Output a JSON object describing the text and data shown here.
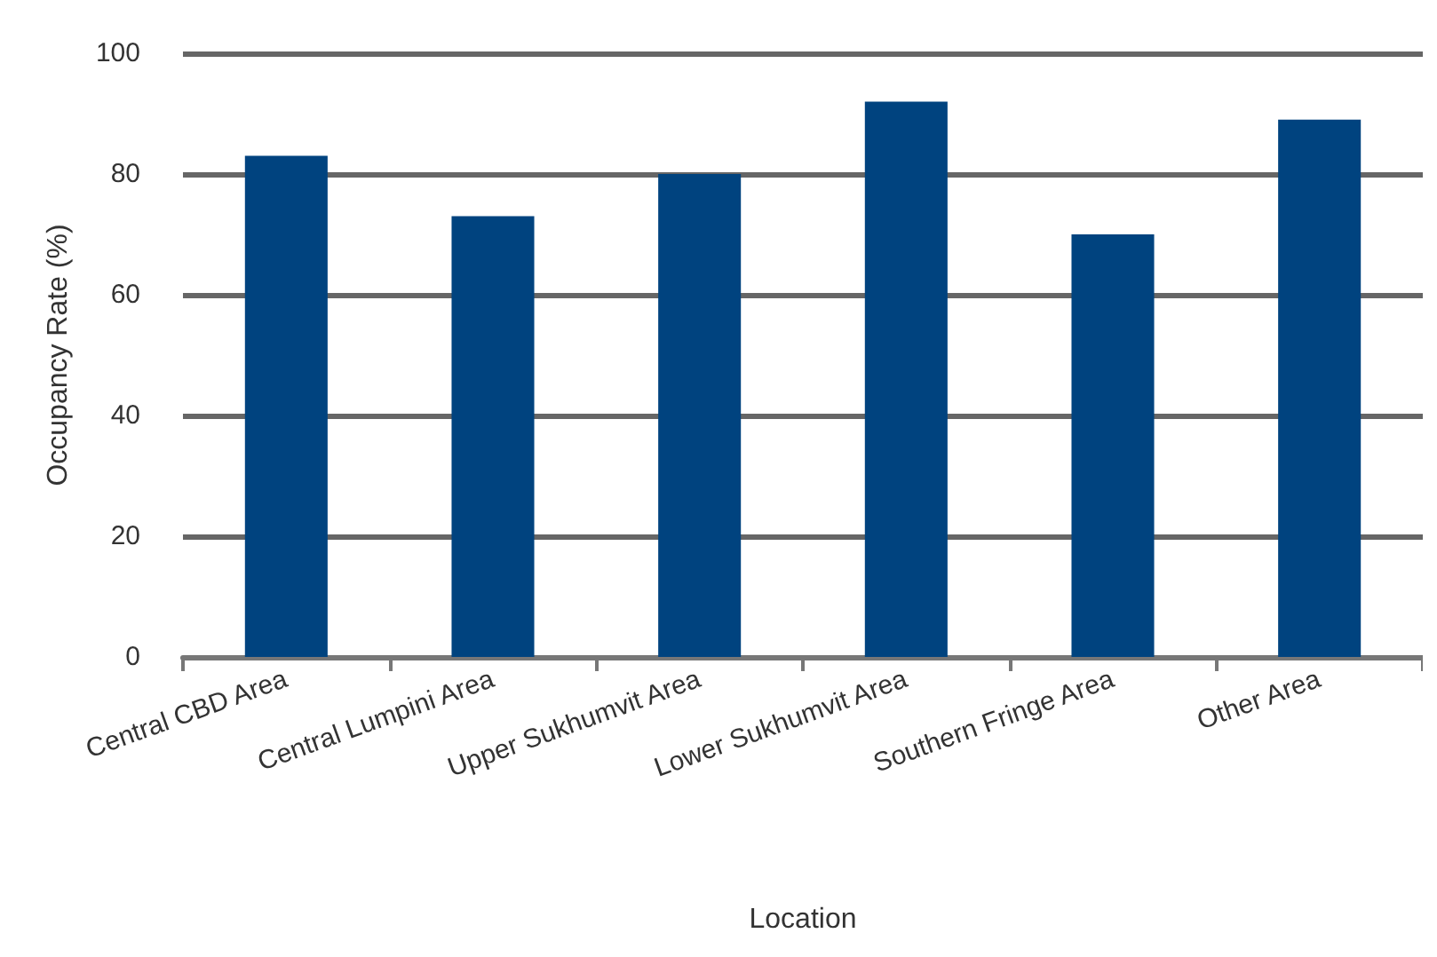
{
  "chart_data": {
    "type": "bar",
    "xlabel": "Location",
    "ylabel": "Occupancy Rate (%)",
    "categories": [
      "Central CBD Area",
      "Central Lumpini Area",
      "Upper Sukhumvit Area",
      "Lower Sukhumvit Area",
      "Southern Fringe Area",
      "Other Area"
    ],
    "values": [
      83,
      73,
      80,
      92,
      70,
      89
    ],
    "color": "#00437f",
    "ylim": [
      0,
      100
    ],
    "yticks": [
      0,
      20,
      40,
      60,
      80,
      100
    ],
    "grid": "y"
  }
}
